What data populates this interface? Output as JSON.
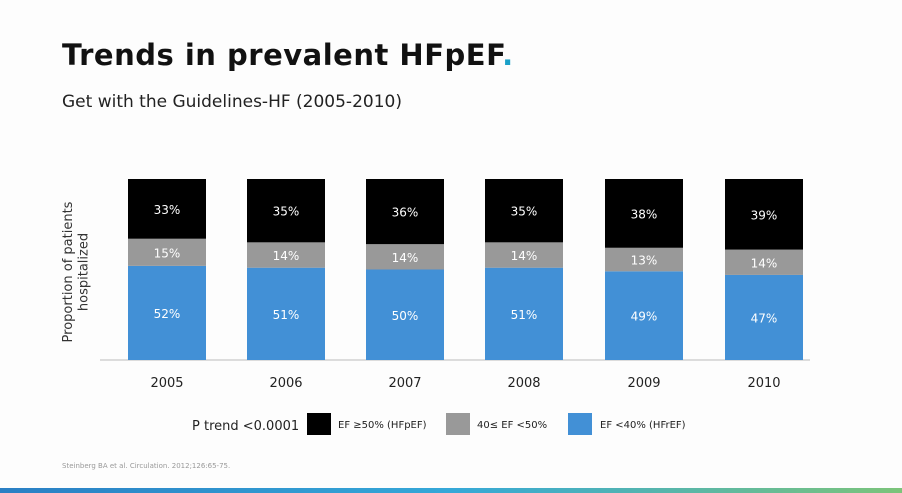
{
  "slide": {
    "title": "Trends in prevalent HFpEF",
    "title_dot": ".",
    "subtitle": "Get with the Guidelines-HF (2005-2010)",
    "p_trend": "P trend <0.0001",
    "footnote": "Steinberg BA et al. Circulation. 2012;126:65-75."
  },
  "colors": {
    "hfpef": "#000000",
    "mid": "#999999",
    "hfref": "#4290d6",
    "title_dot": "#1aa0c8"
  },
  "chart_data": {
    "type": "bar",
    "stacked": true,
    "ylabel": "Proportion of patients hospitalized",
    "ylabel_lines": [
      "Proportion of patients",
      "hospitalized"
    ],
    "categories": [
      "2005",
      "2006",
      "2007",
      "2008",
      "2009",
      "2010"
    ],
    "series": [
      {
        "name": "EF <40% (HFrEF)",
        "color": "#4290d6",
        "values": [
          52,
          51,
          50,
          51,
          49,
          47
        ],
        "labels": [
          "52%",
          "51%",
          "50%",
          "51%",
          "49%",
          "47%"
        ]
      },
      {
        "name": "40≤ EF <50%",
        "color": "#999999",
        "values": [
          15,
          14,
          14,
          14,
          13,
          14
        ],
        "labels": [
          "15%",
          "14%",
          "14%",
          "14%",
          "13%",
          "14%"
        ]
      },
      {
        "name": "EF ≥50% (HFpEF)",
        "color": "#000000",
        "values": [
          33,
          35,
          36,
          35,
          38,
          39
        ],
        "labels": [
          "33%",
          "35%",
          "36%",
          "35%",
          "38%",
          "39%"
        ]
      }
    ],
    "legend_order": [
      2,
      1,
      0
    ],
    "legend_position": "bottom",
    "ylim": [
      0,
      100
    ],
    "grid": false
  }
}
